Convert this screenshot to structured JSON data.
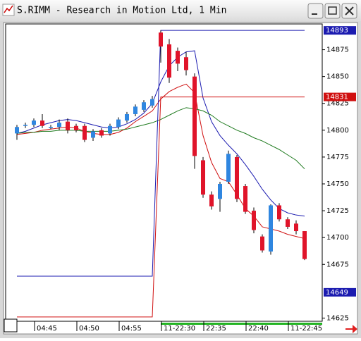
{
  "chart_data": {
    "type": "candlestick",
    "title": "S.RIMM - Research in Motion Ltd, 1 Min",
    "categories": [
      null,
      null,
      "04:45",
      null,
      null,
      null,
      null,
      "04:50",
      null,
      null,
      null,
      null,
      "04:55",
      null,
      null,
      null,
      null,
      "11-22:30",
      null,
      null,
      null,
      null,
      "22:35",
      null,
      null,
      null,
      null,
      "22:40",
      null,
      null,
      null,
      null,
      "11-22:45",
      null,
      null
    ],
    "open": [
      14797,
      14804,
      14805,
      14809,
      14802,
      14803,
      14808,
      14804,
      14804,
      14793,
      14800,
      14797,
      14803,
      14809,
      14815,
      14819,
      14823,
      14891,
      14880,
      14874,
      14868,
      14850,
      14772,
      14740,
      14736,
      14752,
      14775,
      14748,
      14725,
      14701,
      14687,
      14730,
      14717,
      14713,
      14706
    ],
    "high": [
      14805,
      14807,
      14811,
      14815,
      14805,
      14810,
      14811,
      14806,
      14806,
      14801,
      14802,
      14806,
      14812,
      14817,
      14824,
      14828,
      14832,
      14893,
      14885,
      14877,
      14873,
      14853,
      14775,
      14743,
      14752,
      14781,
      14777,
      14750,
      14728,
      14703,
      14731,
      14732,
      14719,
      14716,
      14706
    ],
    "low": [
      14791,
      14802,
      14803,
      14802,
      14801,
      14800,
      14797,
      14798,
      14789,
      14790,
      14793,
      14795,
      14801,
      14807,
      14813,
      14817,
      14821,
      14863,
      14844,
      14855,
      14851,
      14764,
      14737,
      14726,
      14724,
      14750,
      14733,
      14722,
      14704,
      14686,
      14684,
      14715,
      14708,
      14703,
      14679
    ],
    "close": [
      14803,
      14805,
      14809,
      14804,
      14803,
      14807,
      14800,
      14800,
      14791,
      14799,
      14795,
      14804,
      14810,
      14815,
      14822,
      14826,
      14829,
      14878,
      14849,
      14862,
      14856,
      14776,
      14740,
      14729,
      14750,
      14778,
      14736,
      14724,
      14707,
      14688,
      14730,
      14717,
      14710,
      14706,
      14680
    ],
    "up_color": "#2f86e0",
    "down_color": "#e0142a",
    "lines": [
      {
        "color": "#1b1bb0",
        "values": [
          14797,
          14799,
          14802,
          14805,
          14807,
          14809,
          14810,
          14809,
          14807,
          14805,
          14803,
          14802,
          14803,
          14806,
          14810,
          14816,
          14825,
          14845,
          14860,
          14868,
          14873,
          14874,
          14830,
          14808,
          14795,
          14786,
          14778,
          14768,
          14757,
          14745,
          14735,
          14727,
          14723,
          14721,
          14720
        ]
      },
      {
        "color": "#d01010",
        "values": [
          14796,
          14797,
          14798,
          14800,
          14801,
          14802,
          14803,
          14802,
          14799,
          14797,
          14796,
          14796,
          14798,
          14802,
          14808,
          14813,
          14818,
          14829,
          14836,
          14840,
          14843,
          14835,
          14795,
          14770,
          14755,
          14752,
          14740,
          14727,
          14720,
          14710,
          14708,
          14706,
          14703,
          14701,
          14699
        ]
      },
      {
        "color": "#1e7a1e",
        "values": [
          14797,
          14798,
          14798,
          14799,
          14799,
          14800,
          14800,
          14800,
          14799,
          14799,
          14799,
          14799,
          14800,
          14801,
          14803,
          14805,
          14807,
          14810,
          14814,
          14818,
          14821,
          14820,
          14818,
          14814,
          14808,
          14804,
          14800,
          14797,
          14793,
          14790,
          14786,
          14782,
          14777,
          14772,
          14764
        ]
      },
      {
        "color": "#1b1bb0",
        "values": [
          14664,
          14664,
          14664,
          14664,
          14664,
          14664,
          14664,
          14664,
          14664,
          14664,
          14664,
          14664,
          14664,
          14664,
          14664,
          14664,
          14664,
          14893,
          14893,
          14893,
          14893,
          14893,
          14893,
          14893,
          14893,
          14893,
          14893,
          14893,
          14893,
          14893,
          14893,
          14893,
          14893,
          14893,
          14893
        ]
      },
      {
        "color": "#d01010",
        "values": [
          14626,
          14626,
          14626,
          14626,
          14626,
          14626,
          14626,
          14626,
          14626,
          14626,
          14626,
          14626,
          14626,
          14626,
          14626,
          14626,
          14626,
          14831,
          14831,
          14831,
          14831,
          14831,
          14831,
          14831,
          14831,
          14831,
          14831,
          14831,
          14831,
          14831,
          14831,
          14831,
          14831,
          14831,
          14831
        ]
      }
    ],
    "price_labels": [
      {
        "value": 14893,
        "color": "#1b1bb0"
      },
      {
        "value": 14831,
        "color": "#d01010"
      },
      {
        "value": 14649,
        "color": "#1b1bb0"
      }
    ],
    "ylim": [
      14622,
      14899
    ],
    "yticks": [
      14625,
      14675,
      14700,
      14725,
      14750,
      14775,
      14800,
      14825,
      14850,
      14875
    ]
  }
}
